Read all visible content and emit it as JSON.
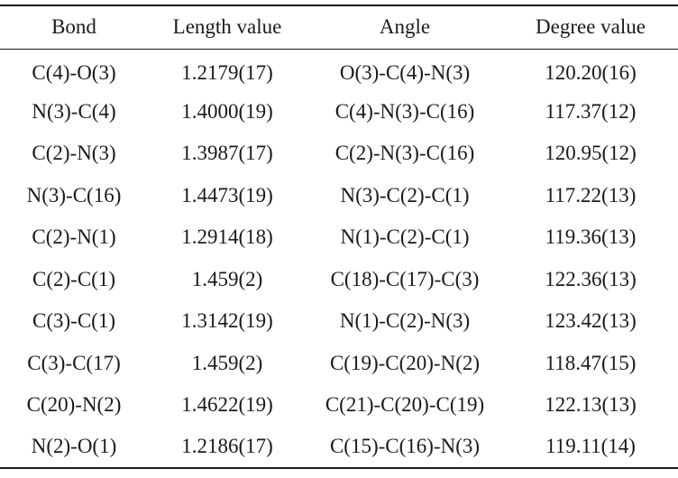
{
  "table": {
    "headers": [
      "Bond",
      "Length value",
      "Angle",
      "Degree value"
    ],
    "rows": [
      [
        "C(4)-O(3)",
        "1.2179(17)",
        "O(3)-C(4)-N(3)",
        "120.20(16)"
      ],
      [
        "N(3)-C(4)",
        "1.4000(19)",
        "C(4)-N(3)-C(16)",
        "117.37(12)"
      ],
      [
        "C(2)-N(3)",
        "1.3987(17)",
        "C(2)-N(3)-C(16)",
        "120.95(12)"
      ],
      [
        "N(3)-C(16)",
        "1.4473(19)",
        "N(3)-C(2)-C(1)",
        "117.22(13)"
      ],
      [
        "C(2)-N(1)",
        "1.2914(18)",
        "N(1)-C(2)-C(1)",
        "119.36(13)"
      ],
      [
        "C(2)-C(1)",
        "1.459(2)",
        "C(18)-C(17)-C(3)",
        "122.36(13)"
      ],
      [
        "C(3)-C(1)",
        "1.3142(19)",
        "N(1)-C(2)-N(3)",
        "123.42(13)"
      ],
      [
        "C(3)-C(17)",
        "1.459(2)",
        "C(19)-C(20)-N(2)",
        "118.47(15)"
      ],
      [
        "C(20)-N(2)",
        "1.4622(19)",
        "C(21)-C(20)-C(19)",
        "122.13(13)"
      ],
      [
        "N(2)-O(1)",
        "1.2186(17)",
        "C(15)-C(16)-N(3)",
        "119.11(14)"
      ]
    ]
  }
}
